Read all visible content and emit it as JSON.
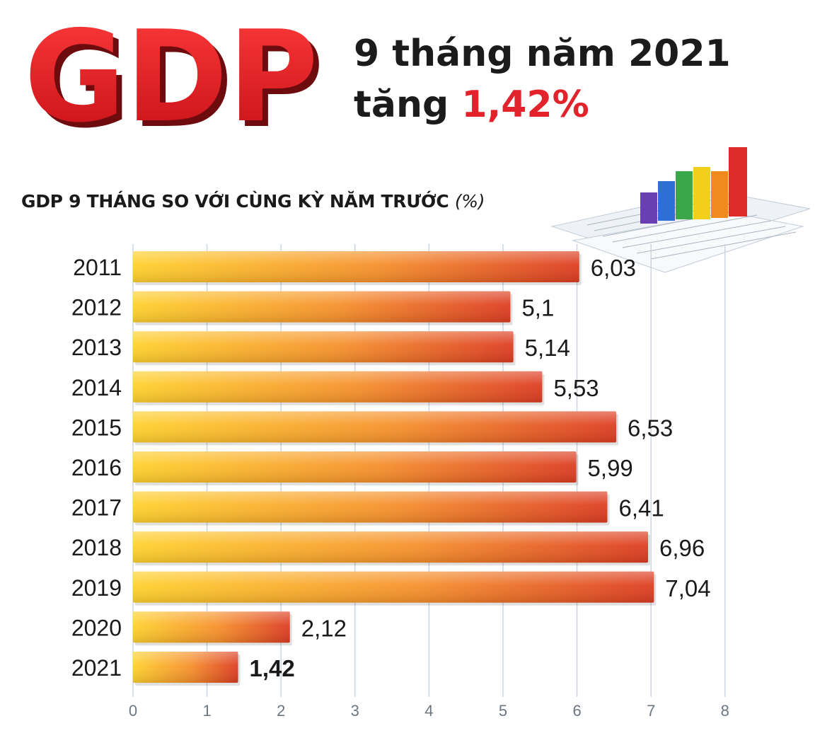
{
  "logo": {
    "text": "GDP",
    "color": "#e2232b"
  },
  "headline": {
    "line1": "9 tháng năm 2021",
    "line2_prefix": "tăng",
    "line2_value": "1,42%"
  },
  "chart_data": {
    "type": "bar",
    "orientation": "horizontal",
    "title": "GDP 9 THÁNG SO VỚI CÙNG KỲ NĂM TRƯỚC",
    "unit": "(%)",
    "categories": [
      "2011",
      "2012",
      "2013",
      "2014",
      "2015",
      "2016",
      "2017",
      "2018",
      "2019",
      "2020",
      "2021"
    ],
    "values": [
      6.03,
      5.1,
      5.14,
      5.53,
      6.53,
      5.99,
      6.41,
      6.96,
      7.04,
      2.12,
      1.42
    ],
    "value_labels": [
      "6,03",
      "5,1",
      "5,14",
      "5,53",
      "6,53",
      "5,99",
      "6,41",
      "6,96",
      "7,04",
      "2,12",
      "1,42"
    ],
    "highlight_index": 10,
    "xlim": [
      0,
      8
    ],
    "x_ticks": [
      0,
      1,
      2,
      3,
      4,
      5,
      6,
      7,
      8
    ],
    "grid": true,
    "colors": {
      "bar_start": "#ffd12e",
      "bar_mid": "#f6902c",
      "bar_end": "#dd3d22",
      "grid": "#c9d3de"
    }
  }
}
